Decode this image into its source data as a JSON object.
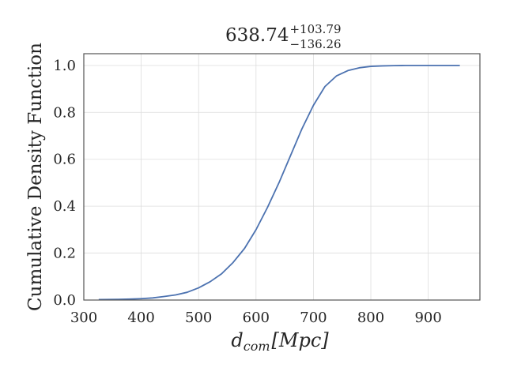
{
  "chart_data": {
    "type": "line",
    "title": {
      "main": "638.74",
      "sup": "+103.79",
      "sub": "−136.26"
    },
    "xlabel": "d_{com} [Mpc]",
    "xlabel_parts": {
      "base": "d",
      "subscript": "com",
      "bracket": "[Mpc]"
    },
    "ylabel": "Cumulative Density Function",
    "xlim": [
      300,
      990
    ],
    "ylim": [
      0,
      1.05
    ],
    "x_ticks": [
      300,
      400,
      500,
      600,
      700,
      800,
      900
    ],
    "y_ticks": [
      0.0,
      0.2,
      0.4,
      0.6,
      0.8,
      1.0
    ],
    "x_tick_labels": [
      "300",
      "400",
      "500",
      "600",
      "700",
      "800",
      "900"
    ],
    "y_tick_labels": [
      "0.0",
      "0.2",
      "0.4",
      "0.6",
      "0.8",
      "1.0"
    ],
    "grid": true,
    "line_color": "#4c72b0",
    "series": [
      {
        "x": [
          326,
          360,
          380,
          400,
          420,
          440,
          460,
          480,
          500,
          520,
          540,
          560,
          580,
          600,
          620,
          640,
          660,
          680,
          700,
          720,
          740,
          760,
          780,
          800,
          820,
          840,
          860,
          880,
          900,
          920,
          955
        ],
        "y": [
          0.002,
          0.003,
          0.004,
          0.006,
          0.009,
          0.015,
          0.022,
          0.033,
          0.052,
          0.078,
          0.112,
          0.16,
          0.22,
          0.3,
          0.395,
          0.5,
          0.615,
          0.73,
          0.83,
          0.91,
          0.955,
          0.978,
          0.99,
          0.996,
          0.998,
          0.999,
          1.0,
          1.0,
          1.0,
          1.0,
          1.0
        ]
      }
    ]
  }
}
